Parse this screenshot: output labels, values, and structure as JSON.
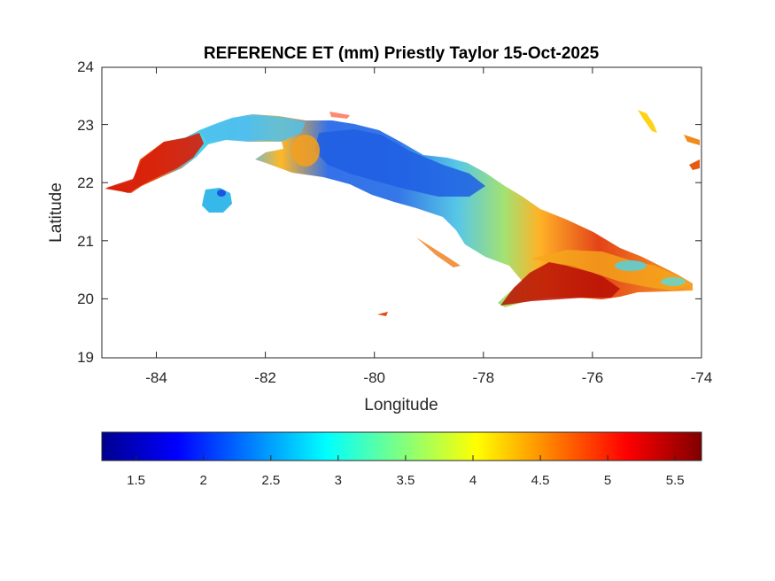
{
  "map": {
    "title": "REFERENCE ET (mm) Priestly Taylor 15-Oct-2025",
    "xlabel": "Longitude",
    "ylabel": "Latitude",
    "xlim": [
      -85,
      -74
    ],
    "ylim": [
      19,
      24
    ],
    "x_ticks": [
      "-84",
      "-82",
      "-80",
      "-78",
      "-76",
      "-74"
    ],
    "y_ticks": [
      "19",
      "20",
      "21",
      "22",
      "23",
      "24"
    ],
    "colormap": "jet",
    "colorbar": {
      "range": [
        1.2,
        5.65
      ],
      "ticks": [
        "1.5",
        "2",
        "2.5",
        "3",
        "3.5",
        "4",
        "4.5",
        "5",
        "5.5"
      ],
      "colors": [
        "#00008f",
        "#0000ff",
        "#00ffff",
        "#ffff00",
        "#ff0000",
        "#800000"
      ]
    },
    "region_colors": {
      "west_hot": "#d81a0a",
      "central_cool": "#2f6fe0",
      "mid_teal": "#35c8d8",
      "east_warm": "#f7a21a",
      "southeast_hot": "#b80f05"
    }
  }
}
